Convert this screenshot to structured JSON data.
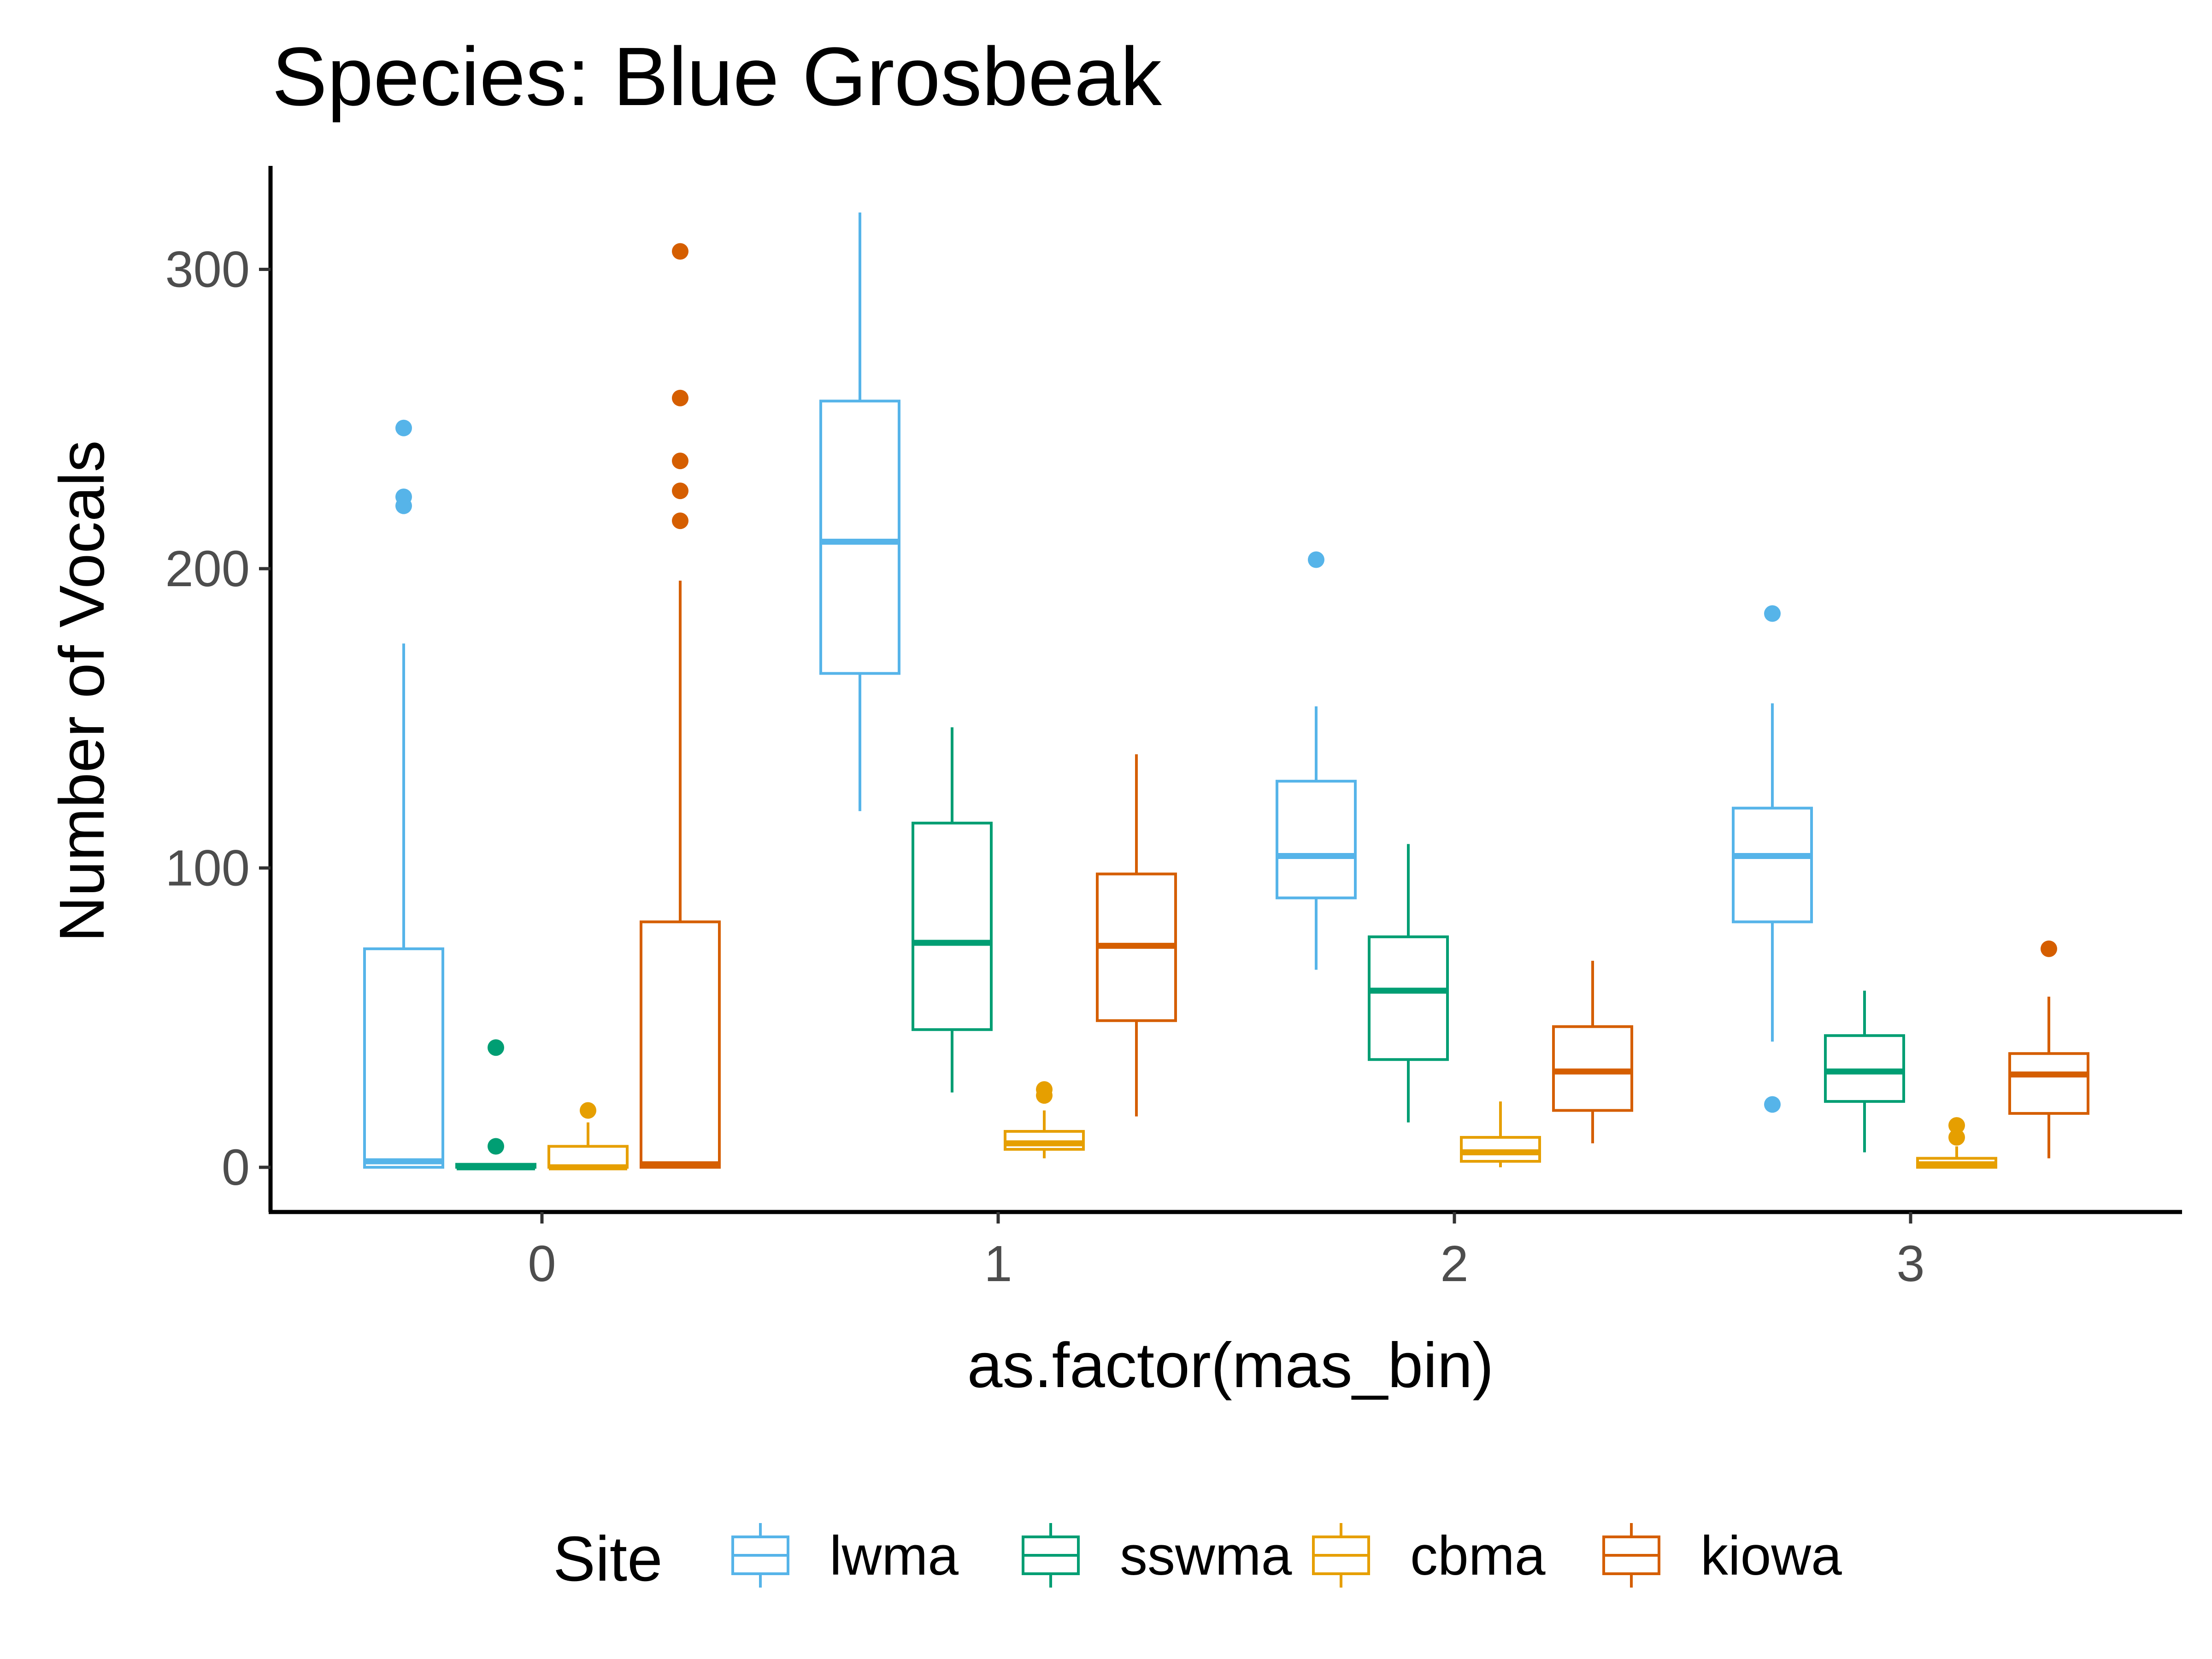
{
  "chart_data": {
    "type": "boxplot",
    "title": "Species: Blue Grosbeak",
    "xlabel": "as.factor(mas_bin)",
    "ylabel": "Number of Vocals",
    "categories": [
      "0",
      "1",
      "2",
      "3"
    ],
    "yticks": [
      0,
      100,
      200,
      300
    ],
    "ylim": [
      -15,
      335
    ],
    "grid": false,
    "legend": {
      "title": "Site",
      "position": "bottom"
    },
    "series": [
      {
        "name": "lwma",
        "color": "#56B4E9",
        "boxes": [
          {
            "category": "0",
            "whisker_low": 0,
            "q1": 0,
            "median": 2,
            "q3": 73,
            "whisker_high": 175,
            "outliers": [
              221,
              224,
              247
            ]
          },
          {
            "category": "1",
            "whisker_low": 119,
            "q1": 165,
            "median": 209,
            "q3": 256,
            "whisker_high": 319,
            "outliers": []
          },
          {
            "category": "2",
            "whisker_low": 66,
            "q1": 90,
            "median": 104,
            "q3": 129,
            "whisker_high": 154,
            "outliers": [
              203
            ]
          },
          {
            "category": "3",
            "whisker_low": 42,
            "q1": 82,
            "median": 104,
            "q3": 120,
            "whisker_high": 155,
            "outliers": [
              21,
              185
            ]
          }
        ]
      },
      {
        "name": "sswma",
        "color": "#009E73",
        "boxes": [
          {
            "category": "0",
            "whisker_low": 0,
            "q1": 0,
            "median": 0,
            "q3": 1,
            "whisker_high": 1,
            "outliers": [
              7,
              40
            ]
          },
          {
            "category": "1",
            "whisker_low": 25,
            "q1": 46,
            "median": 75,
            "q3": 115,
            "whisker_high": 147,
            "outliers": []
          },
          {
            "category": "2",
            "whisker_low": 15,
            "q1": 36,
            "median": 59,
            "q3": 77,
            "whisker_high": 108,
            "outliers": []
          },
          {
            "category": "3",
            "whisker_low": 5,
            "q1": 22,
            "median": 32,
            "q3": 44,
            "whisker_high": 59,
            "outliers": []
          }
        ]
      },
      {
        "name": "cbma",
        "color": "#E69F00",
        "boxes": [
          {
            "category": "0",
            "whisker_low": 0,
            "q1": 0,
            "median": 0,
            "q3": 7,
            "whisker_high": 15,
            "outliers": [
              19
            ]
          },
          {
            "category": "1",
            "whisker_low": 3,
            "q1": 6,
            "median": 8,
            "q3": 12,
            "whisker_high": 19,
            "outliers": [
              24,
              26
            ]
          },
          {
            "category": "2",
            "whisker_low": 0,
            "q1": 2,
            "median": 5,
            "q3": 10,
            "whisker_high": 22,
            "outliers": []
          },
          {
            "category": "3",
            "whisker_low": 0,
            "q1": 0,
            "median": 1,
            "q3": 3,
            "whisker_high": 7,
            "outliers": [
              10,
              14
            ]
          }
        ]
      },
      {
        "name": "kiowa",
        "color": "#D55E00",
        "boxes": [
          {
            "category": "0",
            "whisker_low": 0,
            "q1": 0,
            "median": 1,
            "q3": 82,
            "whisker_high": 196,
            "outliers": [
              216,
              226,
              236,
              257,
              306
            ]
          },
          {
            "category": "1",
            "whisker_low": 17,
            "q1": 49,
            "median": 74,
            "q3": 98,
            "whisker_high": 138,
            "outliers": []
          },
          {
            "category": "2",
            "whisker_low": 8,
            "q1": 19,
            "median": 32,
            "q3": 47,
            "whisker_high": 69,
            "outliers": []
          },
          {
            "category": "3",
            "whisker_low": 3,
            "q1": 18,
            "median": 31,
            "q3": 38,
            "whisker_high": 57,
            "outliers": [
              73
            ]
          }
        ]
      }
    ]
  }
}
